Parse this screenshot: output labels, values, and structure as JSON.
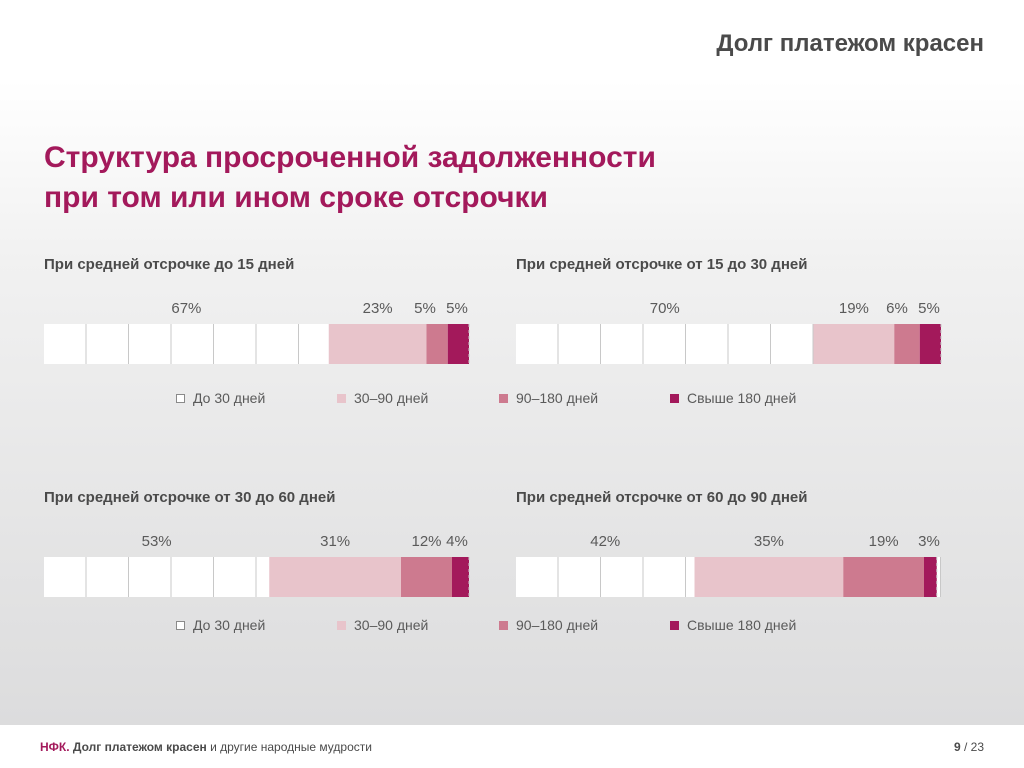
{
  "header": {
    "title": "Долг платежом красен"
  },
  "main": {
    "title_line1": "Структура просроченной задолженности",
    "title_line2": "при том или ином сроке отсрочки"
  },
  "colors": {
    "accent": "#a3195b",
    "seg1": "#ffffff",
    "seg2": "#e8c4cb",
    "seg3": "#cd7a8f",
    "seg4": "#a3195b"
  },
  "legend": {
    "items": [
      {
        "label": "До 30 дней",
        "color": "#ffffff"
      },
      {
        "label": "30–90 дней",
        "color": "#e8c4cb"
      },
      {
        "label": "90–180 дней",
        "color": "#cd7a8f"
      },
      {
        "label": "Свыше 180 дней",
        "color": "#a3195b"
      }
    ]
  },
  "chart_data": [
    {
      "type": "bar",
      "stacked": true,
      "title": "При средней отсрочке до 15 дней",
      "categories": [
        "До 30 дней",
        "30–90 дней",
        "90–180 дней",
        "Свыше 180 дней"
      ],
      "values": [
        67,
        23,
        5,
        5
      ],
      "labels": [
        "67%",
        "23%",
        "5%",
        "5%"
      ]
    },
    {
      "type": "bar",
      "stacked": true,
      "title": "При средней отсрочке от 15 до 30 дней",
      "categories": [
        "До 30 дней",
        "30–90 дней",
        "90–180 дней",
        "Свыше 180 дней"
      ],
      "values": [
        70,
        19,
        6,
        5
      ],
      "labels": [
        "70%",
        "19%",
        "6%",
        "5%"
      ]
    },
    {
      "type": "bar",
      "stacked": true,
      "title": "При средней отсрочке от 30 до 60 дней",
      "categories": [
        "До 30 дней",
        "30–90 дней",
        "90–180 дней",
        "Свыше 180 дней"
      ],
      "values": [
        53,
        31,
        12,
        4
      ],
      "labels": [
        "53%",
        "31%",
        "12%",
        "4%"
      ]
    },
    {
      "type": "bar",
      "stacked": true,
      "title": "При средней отсрочке от 60 до 90 дней",
      "categories": [
        "До 30 дней",
        "30–90 дней",
        "90–180 дней",
        "Свыше 180 дней"
      ],
      "values": [
        42,
        35,
        19,
        3
      ],
      "labels": [
        "42%",
        "35%",
        "19%",
        "3%"
      ]
    }
  ],
  "footer": {
    "brand": "НФК.",
    "bold": "Долг платежом красен",
    "rest": "и другие народные мудрости",
    "page": "9",
    "sep": " / ",
    "total": "23"
  }
}
